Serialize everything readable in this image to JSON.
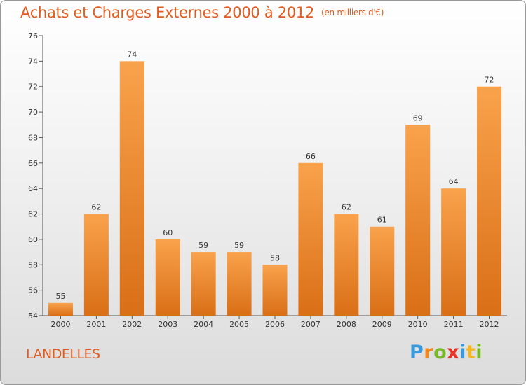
{
  "chart_data": {
    "type": "bar",
    "title": "Achats et Charges Externes 2000 à 2012",
    "subtitle": "(en milliers d'€)",
    "categories": [
      "2000",
      "2001",
      "2002",
      "2003",
      "2004",
      "2005",
      "2006",
      "2007",
      "2008",
      "2009",
      "2010",
      "2011",
      "2012"
    ],
    "values": [
      55,
      62,
      74,
      60,
      59,
      59,
      58,
      66,
      62,
      61,
      69,
      64,
      72
    ],
    "ylim": [
      54,
      76
    ],
    "yticks": [
      54,
      56,
      58,
      60,
      62,
      64,
      66,
      68,
      70,
      72,
      74,
      76
    ],
    "grid": false,
    "bar_color": "#ef8a2c"
  },
  "location_label": "LANDELLES",
  "brand": {
    "text": "Proxiti",
    "letters": [
      {
        "ch": "P",
        "color": "#3a9ad9"
      },
      {
        "ch": "r",
        "color": "#f08a1c"
      },
      {
        "ch": "o",
        "color": "#79b928"
      },
      {
        "ch": "x",
        "color": "#e8332a"
      },
      {
        "ch": "i",
        "color": "#3a9ad9"
      },
      {
        "ch": "t",
        "color": "#f5b51c"
      },
      {
        "ch": "i",
        "color": "#79b928"
      }
    ]
  }
}
